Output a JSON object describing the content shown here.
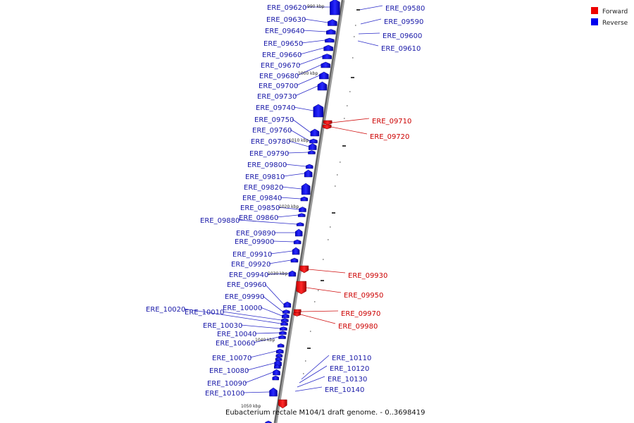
{
  "caption": "Eubacterium rectale M104/1 draft genome. - 0..3698419",
  "legend": [
    {
      "label": "Forward",
      "color": "#ee0000"
    },
    {
      "label": "Reverse",
      "color": "#0000ee"
    }
  ],
  "ticks": [
    "990 kbp",
    "1000 kbp",
    "1010 kbp",
    "1020 kbp",
    "1030 kbp",
    "1040 kbp",
    "1050 kbp"
  ],
  "genes_reverse_left": [
    "ERE_09620",
    "ERE_09630",
    "ERE_09640",
    "ERE_09650",
    "ERE_09660",
    "ERE_09670",
    "ERE_09680",
    "ERE_09700",
    "ERE_09730",
    "ERE_09740",
    "ERE_09750",
    "ERE_09760",
    "ERE_09780",
    "ERE_09790",
    "ERE_09800",
    "ERE_09810",
    "ERE_09820",
    "ERE_09840",
    "ERE_09850",
    "ERE_09860",
    "ERE_09880",
    "ERE_09890",
    "ERE_09900",
    "ERE_09910",
    "ERE_09920",
    "ERE_09940",
    "ERE_09960",
    "ERE_09990",
    "ERE_10000",
    "ERE_10010",
    "ERE_10020",
    "ERE_10030",
    "ERE_10040",
    "ERE_10060",
    "ERE_10070",
    "ERE_10080",
    "ERE_10090",
    "ERE_10100"
  ],
  "genes_reverse_right": [
    "ERE_09580",
    "ERE_09590",
    "ERE_09600",
    "ERE_09610",
    "ERE_10110",
    "ERE_10120",
    "ERE_10130",
    "ERE_10140"
  ],
  "genes_forward": [
    "ERE_09710",
    "ERE_09720",
    "ERE_09930",
    "ERE_09950",
    "ERE_09970",
    "ERE_09980"
  ]
}
